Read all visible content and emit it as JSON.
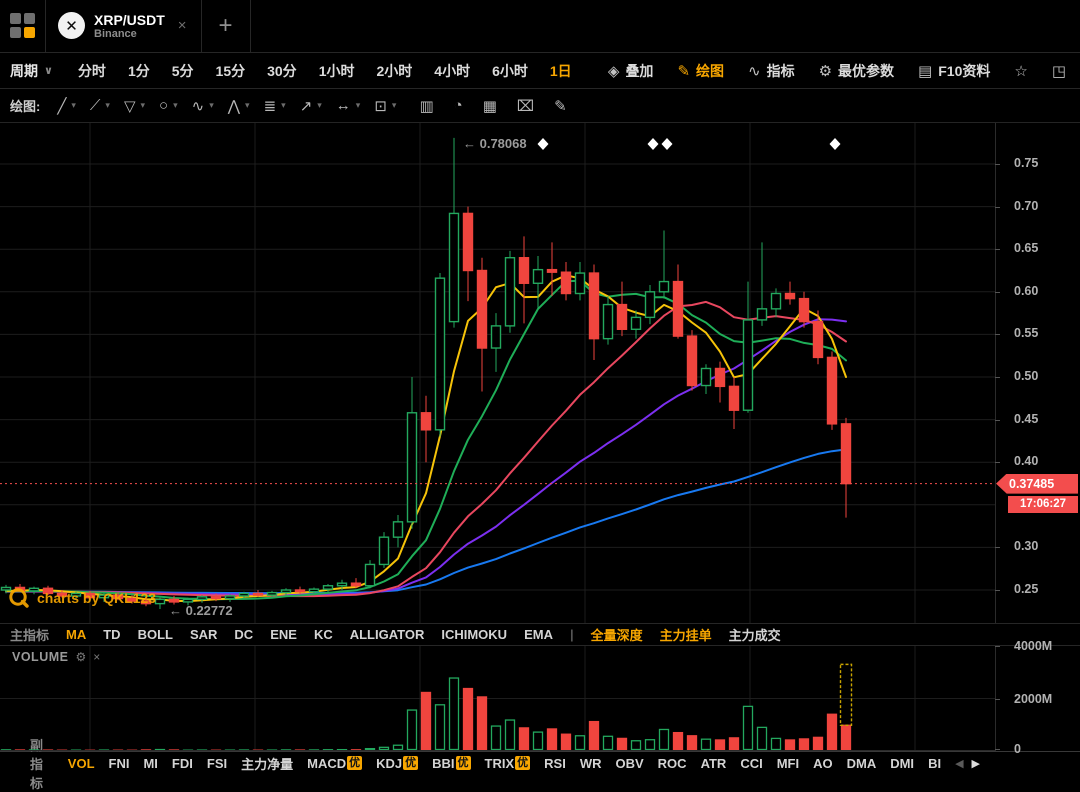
{
  "tabbar": {
    "tab": {
      "symbol": "XRP/USDT",
      "exchange": "Binance",
      "logo_glyph": "✕",
      "close_label": "×"
    },
    "new_tab_label": "+"
  },
  "period_toolbar": {
    "label": "周期",
    "caret": "∨",
    "periods": [
      "分时",
      "1分",
      "5分",
      "15分",
      "30分",
      "1小时",
      "2小时",
      "4小时",
      "6小时",
      "1日"
    ],
    "selected_period": "1日",
    "buttons": [
      {
        "id": "overlay",
        "label": "叠加",
        "icon": "layers-icon",
        "glyph": "◈"
      },
      {
        "id": "draw",
        "label": "绘图",
        "icon": "pencil-icon",
        "glyph": "✎",
        "active": true
      },
      {
        "id": "indicator",
        "label": "指标",
        "icon": "line-chart-icon",
        "glyph": "∿"
      },
      {
        "id": "optimal-params",
        "label": "最优参数",
        "icon": "sliders-icon",
        "glyph": "⚙"
      },
      {
        "id": "f10-info",
        "label": "F10资料",
        "icon": "document-icon",
        "glyph": "▤"
      },
      {
        "id": "favorite",
        "label": "",
        "icon": "star-icon",
        "glyph": "☆"
      },
      {
        "id": "fullscreen",
        "label": "",
        "icon": "expand-icon",
        "glyph": "◳"
      }
    ]
  },
  "drawing_toolbar": {
    "label": "绘图:",
    "caret": "▾",
    "tools": [
      {
        "id": "trend-line",
        "glyph": "╱"
      },
      {
        "id": "segment",
        "glyph": "⟋"
      },
      {
        "id": "shape",
        "glyph": "▽"
      },
      {
        "id": "ellipse",
        "glyph": "○"
      },
      {
        "id": "wave",
        "glyph": "∿"
      },
      {
        "id": "pattern",
        "glyph": "⋀"
      },
      {
        "id": "gann-lines",
        "glyph": "≣"
      },
      {
        "id": "arrow",
        "glyph": "↗"
      },
      {
        "id": "measure",
        "glyph": "↔"
      },
      {
        "id": "annotation",
        "glyph": "⊡"
      }
    ],
    "actions": [
      {
        "id": "volume-profile",
        "glyph": "▥"
      },
      {
        "id": "pie-analysis",
        "glyph": "◔"
      },
      {
        "id": "histogram",
        "glyph": "▦"
      },
      {
        "id": "delete",
        "glyph": "⌧"
      },
      {
        "id": "brush",
        "glyph": "✎"
      }
    ]
  },
  "main_chart": {
    "arrow": "←",
    "high_label": "0.78068",
    "low_label": "0.22772",
    "watermark": "charts by QKL123",
    "price_tag": "0.37485",
    "time_tag": "17:06:27",
    "y_axis_labels": [
      "0.75",
      "0.70",
      "0.65",
      "0.60",
      "0.55",
      "0.50",
      "0.45",
      "0.40",
      "0.30",
      "0.25"
    ]
  },
  "main_indicator_bar": {
    "label": "主指标",
    "tabs": [
      "MA",
      "TD",
      "BOLL",
      "SAR",
      "DC",
      "ENE",
      "KC",
      "ALLIGATOR",
      "ICHIMOKU",
      "EMA"
    ],
    "selected": "MA",
    "separator": "|",
    "extra_tabs": [
      {
        "label": "全量深度",
        "highlight": true
      },
      {
        "label": "主力挂单",
        "highlight": true
      },
      {
        "label": "主力成交",
        "highlight": false
      }
    ]
  },
  "volume_pane": {
    "title": "VOLUME",
    "gear": "⚙",
    "close": "×",
    "y_axis_labels": [
      "4000M",
      "2000M",
      "0"
    ]
  },
  "sub_indicator_bar": {
    "label": "副指标",
    "tabs": [
      {
        "label": "VOL",
        "selected": true
      },
      {
        "label": "FNI"
      },
      {
        "label": "MI"
      },
      {
        "label": "FDI"
      },
      {
        "label": "FSI"
      },
      {
        "label": "主力净量"
      },
      {
        "label": "MACD",
        "badge": "优"
      },
      {
        "label": "KDJ",
        "badge": "优"
      },
      {
        "label": "BBI",
        "badge": "优"
      },
      {
        "label": "TRIX",
        "badge": "优"
      },
      {
        "label": "RSI"
      },
      {
        "label": "WR"
      },
      {
        "label": "OBV"
      },
      {
        "label": "ROC"
      },
      {
        "label": "ATR"
      },
      {
        "label": "CCI"
      },
      {
        "label": "MFI"
      },
      {
        "label": "AO"
      },
      {
        "label": "DMA"
      },
      {
        "label": "DMI"
      },
      {
        "label": "BI"
      }
    ],
    "scroll_left": "◀",
    "scroll_right": "▶"
  },
  "colors": {
    "background": "#000000",
    "accent_orange": "#f7a600",
    "up_green": "#23a85e",
    "down_red": "#f0453e",
    "tag_red": "#f34d4d",
    "grid": "#1d1d1d",
    "axis_text": "#b2b2b2",
    "marker_white": "#ffffff",
    "projection_yellow": "#c9a400"
  },
  "chart_data": {
    "type": "candlestick",
    "symbol": "XRP/USDT",
    "exchange": "Binance",
    "interval": "1日",
    "current_price": 0.37485,
    "current_time": "17:06:27",
    "session_high": 0.78068,
    "session_low": 0.22772,
    "high_label_candle_index": 32,
    "low_label_candle_index": 11,
    "price_axis": {
      "tick_values": [
        0.75,
        0.7,
        0.65,
        0.6,
        0.55,
        0.5,
        0.45,
        0.4,
        0.3,
        0.25
      ],
      "gridline_step": 0.05,
      "grid_top": 0.75,
      "grid_bottom": 0.25
    },
    "volume_axis": {
      "tick_values_M": [
        4000,
        2000,
        0
      ]
    },
    "vertical_gridlines_x": [
      90,
      255,
      420,
      585,
      750,
      915
    ],
    "top_markers_x": [
      543,
      653,
      667,
      835
    ],
    "candles_ohlcv": [
      [
        0.25,
        0.256,
        0.246,
        0.253,
        45
      ],
      [
        0.253,
        0.257,
        0.248,
        0.249,
        38
      ],
      [
        0.249,
        0.254,
        0.245,
        0.252,
        42
      ],
      [
        0.252,
        0.255,
        0.244,
        0.246,
        35
      ],
      [
        0.246,
        0.25,
        0.241,
        0.243,
        30
      ],
      [
        0.243,
        0.248,
        0.24,
        0.246,
        33
      ],
      [
        0.246,
        0.249,
        0.238,
        0.241,
        28
      ],
      [
        0.241,
        0.246,
        0.236,
        0.244,
        36
      ],
      [
        0.244,
        0.247,
        0.238,
        0.24,
        31
      ],
      [
        0.24,
        0.244,
        0.234,
        0.237,
        29
      ],
      [
        0.237,
        0.242,
        0.231,
        0.234,
        40
      ],
      [
        0.234,
        0.241,
        0.22772,
        0.239,
        55
      ],
      [
        0.239,
        0.243,
        0.233,
        0.236,
        38
      ],
      [
        0.236,
        0.241,
        0.232,
        0.239,
        32
      ],
      [
        0.239,
        0.244,
        0.235,
        0.242,
        36
      ],
      [
        0.242,
        0.246,
        0.237,
        0.24,
        30
      ],
      [
        0.24,
        0.245,
        0.236,
        0.243,
        34
      ],
      [
        0.243,
        0.248,
        0.239,
        0.246,
        38
      ],
      [
        0.246,
        0.25,
        0.242,
        0.244,
        31
      ],
      [
        0.244,
        0.249,
        0.24,
        0.247,
        35
      ],
      [
        0.247,
        0.252,
        0.243,
        0.25,
        42
      ],
      [
        0.25,
        0.254,
        0.245,
        0.248,
        36
      ],
      [
        0.248,
        0.253,
        0.244,
        0.251,
        40
      ],
      [
        0.251,
        0.257,
        0.247,
        0.255,
        48
      ],
      [
        0.255,
        0.262,
        0.25,
        0.258,
        52
      ],
      [
        0.258,
        0.264,
        0.252,
        0.255,
        45
      ],
      [
        0.255,
        0.285,
        0.252,
        0.28,
        90
      ],
      [
        0.28,
        0.318,
        0.276,
        0.312,
        140
      ],
      [
        0.312,
        0.338,
        0.3,
        0.33,
        220
      ],
      [
        0.33,
        0.5,
        0.322,
        0.458,
        1560
      ],
      [
        0.458,
        0.478,
        0.4,
        0.438,
        2230
      ],
      [
        0.438,
        0.622,
        0.43,
        0.616,
        1760
      ],
      [
        0.565,
        0.78068,
        0.558,
        0.692,
        2780
      ],
      [
        0.692,
        0.7,
        0.589,
        0.625,
        2380
      ],
      [
        0.625,
        0.64,
        0.483,
        0.534,
        2060
      ],
      [
        0.534,
        0.575,
        0.506,
        0.56,
        950
      ],
      [
        0.56,
        0.648,
        0.552,
        0.64,
        1180
      ],
      [
        0.64,
        0.665,
        0.563,
        0.61,
        880
      ],
      [
        0.61,
        0.642,
        0.58,
        0.626,
        720
      ],
      [
        0.626,
        0.658,
        0.595,
        0.623,
        840
      ],
      [
        0.623,
        0.635,
        0.59,
        0.598,
        640
      ],
      [
        0.598,
        0.635,
        0.59,
        0.622,
        580
      ],
      [
        0.622,
        0.632,
        0.52,
        0.545,
        1120
      ],
      [
        0.545,
        0.595,
        0.538,
        0.585,
        560
      ],
      [
        0.585,
        0.612,
        0.548,
        0.556,
        480
      ],
      [
        0.556,
        0.578,
        0.545,
        0.57,
        390
      ],
      [
        0.57,
        0.608,
        0.562,
        0.6,
        430
      ],
      [
        0.6,
        0.672,
        0.592,
        0.612,
        820
      ],
      [
        0.612,
        0.632,
        0.545,
        0.548,
        700
      ],
      [
        0.548,
        0.555,
        0.484,
        0.49,
        580
      ],
      [
        0.49,
        0.515,
        0.48,
        0.51,
        450
      ],
      [
        0.51,
        0.518,
        0.47,
        0.489,
        420
      ],
      [
        0.489,
        0.5,
        0.439,
        0.461,
        500
      ],
      [
        0.461,
        0.612,
        0.458,
        0.567,
        1700
      ],
      [
        0.567,
        0.658,
        0.56,
        0.58,
        900
      ],
      [
        0.58,
        0.604,
        0.57,
        0.598,
        480
      ],
      [
        0.598,
        0.612,
        0.585,
        0.592,
        420
      ],
      [
        0.592,
        0.6,
        0.558,
        0.565,
        460
      ],
      [
        0.565,
        0.578,
        0.515,
        0.523,
        520
      ],
      [
        0.523,
        0.53,
        0.438,
        0.445,
        1400
      ],
      [
        0.445,
        0.452,
        0.335,
        0.37485,
        980
      ]
    ],
    "moving_averages": {
      "periods": [
        5,
        10,
        20,
        30,
        60
      ],
      "colors": {
        "5": "#f6c309",
        "10": "#1fae58",
        "20": "#e8475f",
        "30": "#7c2ff0",
        "60": "#1879f0"
      },
      "prehistory_close": 0.248
    },
    "volume_projection": {
      "candle_index": 60,
      "top_value_M": 3300
    }
  }
}
